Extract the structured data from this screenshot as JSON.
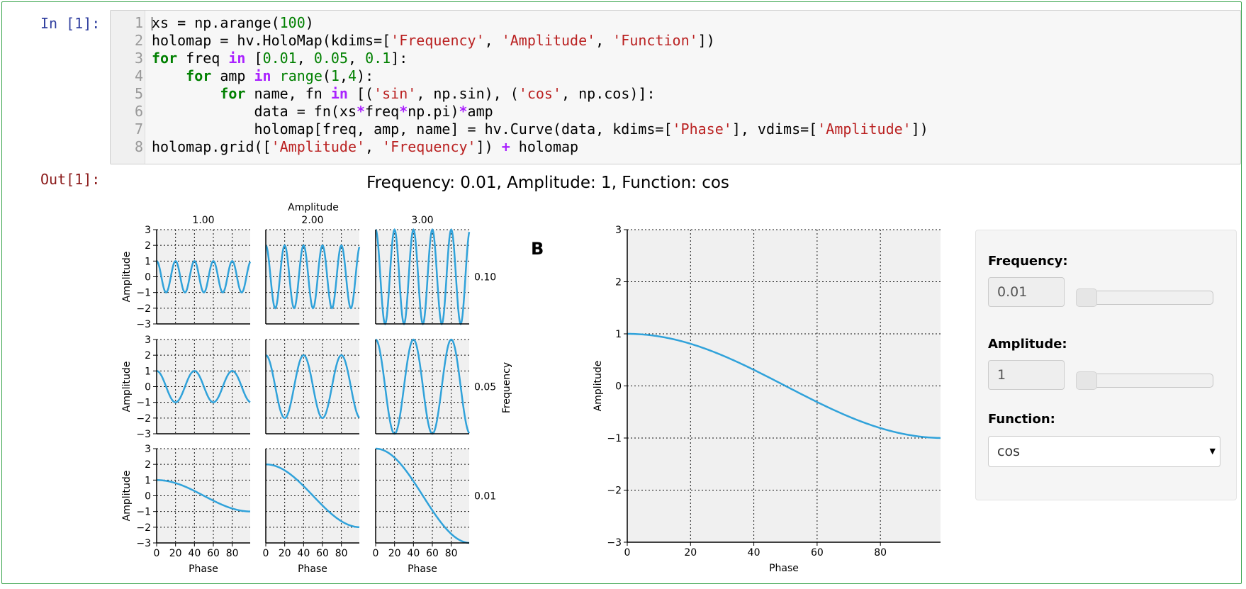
{
  "prompts": {
    "in": "In [1]:",
    "out": "Out[1]:"
  },
  "code": {
    "lines": [
      {
        "num": "1",
        "tokens": [
          {
            "t": "xs = np.arange(",
            "c": ""
          },
          {
            "t": "100",
            "c": "nm"
          },
          {
            "t": ")",
            "c": ""
          }
        ]
      },
      {
        "num": "2",
        "tokens": [
          {
            "t": "holomap = hv.HoloMap(kdims=[",
            "c": ""
          },
          {
            "t": "'Frequency'",
            "c": "st"
          },
          {
            "t": ", ",
            "c": ""
          },
          {
            "t": "'Amplitude'",
            "c": "st"
          },
          {
            "t": ", ",
            "c": ""
          },
          {
            "t": "'Function'",
            "c": "st"
          },
          {
            "t": "])",
            "c": ""
          }
        ]
      },
      {
        "num": "3",
        "tokens": [
          {
            "t": "for",
            "c": "kw"
          },
          {
            "t": " freq ",
            "c": ""
          },
          {
            "t": "in",
            "c": "op"
          },
          {
            "t": " [",
            "c": ""
          },
          {
            "t": "0.01",
            "c": "nm"
          },
          {
            "t": ", ",
            "c": ""
          },
          {
            "t": "0.05",
            "c": "nm"
          },
          {
            "t": ", ",
            "c": ""
          },
          {
            "t": "0.1",
            "c": "nm"
          },
          {
            "t": "]:",
            "c": ""
          }
        ]
      },
      {
        "num": "4",
        "tokens": [
          {
            "t": "    ",
            "c": ""
          },
          {
            "t": "for",
            "c": "kw"
          },
          {
            "t": " amp ",
            "c": ""
          },
          {
            "t": "in",
            "c": "op"
          },
          {
            "t": " ",
            "c": ""
          },
          {
            "t": "range",
            "c": "bi"
          },
          {
            "t": "(",
            "c": ""
          },
          {
            "t": "1",
            "c": "nm"
          },
          {
            "t": ",",
            "c": ""
          },
          {
            "t": "4",
            "c": "nm"
          },
          {
            "t": "):",
            "c": ""
          }
        ]
      },
      {
        "num": "5",
        "tokens": [
          {
            "t": "        ",
            "c": ""
          },
          {
            "t": "for",
            "c": "kw"
          },
          {
            "t": " name, fn ",
            "c": ""
          },
          {
            "t": "in",
            "c": "op"
          },
          {
            "t": " [(",
            "c": ""
          },
          {
            "t": "'sin'",
            "c": "st"
          },
          {
            "t": ", np.sin), (",
            "c": ""
          },
          {
            "t": "'cos'",
            "c": "st"
          },
          {
            "t": ", np.cos)]:",
            "c": ""
          }
        ]
      },
      {
        "num": "6",
        "tokens": [
          {
            "t": "            data = fn(xs",
            "c": ""
          },
          {
            "t": "*",
            "c": "op"
          },
          {
            "t": "freq",
            "c": ""
          },
          {
            "t": "*",
            "c": "op"
          },
          {
            "t": "np.pi)",
            "c": ""
          },
          {
            "t": "*",
            "c": "op"
          },
          {
            "t": "amp",
            "c": ""
          }
        ]
      },
      {
        "num": "7",
        "tokens": [
          {
            "t": "            holomap[freq, amp, name] = hv.Curve(data, kdims=[",
            "c": ""
          },
          {
            "t": "'Phase'",
            "c": "st"
          },
          {
            "t": "], vdims=[",
            "c": ""
          },
          {
            "t": "'Amplitude'",
            "c": "st"
          },
          {
            "t": "])",
            "c": ""
          }
        ]
      },
      {
        "num": "8",
        "tokens": [
          {
            "t": "holomap.grid([",
            "c": ""
          },
          {
            "t": "'Amplitude'",
            "c": "st"
          },
          {
            "t": ", ",
            "c": ""
          },
          {
            "t": "'Frequency'",
            "c": "st"
          },
          {
            "t": "]) ",
            "c": ""
          },
          {
            "t": "+",
            "c": "op"
          },
          {
            "t": " holomap",
            "c": ""
          }
        ]
      }
    ]
  },
  "figure": {
    "title": "Frequency: 0.01, Amplitude: 1, Function: cos",
    "panel_letter": "B"
  },
  "colors": {
    "curve": "#30a2da",
    "plot_bg": "#f0f0f0"
  },
  "chart_data": [
    {
      "type": "line",
      "panel": "grid",
      "function": "cos",
      "x_label": "Phase",
      "y_label": "Amplitude",
      "column_dimension_label": "Amplitude",
      "row_dimension_label": "Frequency",
      "column_labels": [
        "1.00",
        "2.00",
        "3.00"
      ],
      "row_labels": [
        "0.10",
        "0.05",
        "0.01"
      ],
      "amplitudes": [
        1,
        2,
        3
      ],
      "frequencies": [
        0.1,
        0.05,
        0.01
      ],
      "x_range": [
        0,
        99
      ],
      "ylim": [
        -3,
        3
      ],
      "x_ticks": [
        "0",
        "20",
        "40",
        "60",
        "80"
      ],
      "y_ticks": [
        "3",
        "2",
        "1",
        "0",
        "−1",
        "−2",
        "−3"
      ],
      "grid": true
    },
    {
      "type": "line",
      "panel": "B",
      "function": "cos",
      "frequency": 0.01,
      "amplitude": 1,
      "x_label": "Phase",
      "y_label": "Amplitude",
      "x_range": [
        0,
        99
      ],
      "ylim": [
        -3,
        3
      ],
      "x_ticks": [
        "0",
        "20",
        "40",
        "60",
        "80"
      ],
      "y_ticks": [
        "3",
        "2",
        "1",
        "0",
        "−1",
        "−2",
        "−3"
      ],
      "grid": true
    }
  ],
  "widgets": {
    "frequency": {
      "label": "Frequency:",
      "value": "0.01",
      "slider_position": 0
    },
    "amplitude": {
      "label": "Amplitude:",
      "value": "1",
      "slider_position": 0
    },
    "function": {
      "label": "Function:",
      "value": "cos"
    },
    "dropdown_icon": "caret-down-icon"
  }
}
